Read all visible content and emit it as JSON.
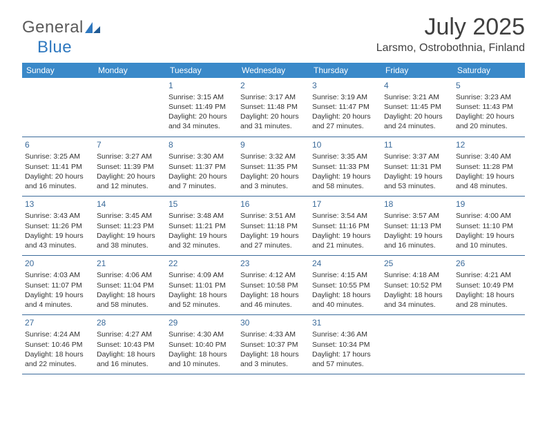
{
  "brand": {
    "part1": "General",
    "part2": "Blue"
  },
  "header": {
    "title": "July 2025",
    "location": "Larsmo, Ostrobothnia, Finland"
  },
  "colors": {
    "header_bg": "#3a89c9",
    "header_text": "#ffffff",
    "rule": "#3a6a9a",
    "daynum": "#3a6a9a",
    "body_text": "#333333",
    "brand_gray": "#5a5a5a",
    "brand_blue": "#2f78bf"
  },
  "weekdays": [
    "Sunday",
    "Monday",
    "Tuesday",
    "Wednesday",
    "Thursday",
    "Friday",
    "Saturday"
  ],
  "weeks": [
    [
      null,
      null,
      {
        "d": "1",
        "sr": "Sunrise: 3:15 AM",
        "ss": "Sunset: 11:49 PM",
        "dl1": "Daylight: 20 hours",
        "dl2": "and 34 minutes."
      },
      {
        "d": "2",
        "sr": "Sunrise: 3:17 AM",
        "ss": "Sunset: 11:48 PM",
        "dl1": "Daylight: 20 hours",
        "dl2": "and 31 minutes."
      },
      {
        "d": "3",
        "sr": "Sunrise: 3:19 AM",
        "ss": "Sunset: 11:47 PM",
        "dl1": "Daylight: 20 hours",
        "dl2": "and 27 minutes."
      },
      {
        "d": "4",
        "sr": "Sunrise: 3:21 AM",
        "ss": "Sunset: 11:45 PM",
        "dl1": "Daylight: 20 hours",
        "dl2": "and 24 minutes."
      },
      {
        "d": "5",
        "sr": "Sunrise: 3:23 AM",
        "ss": "Sunset: 11:43 PM",
        "dl1": "Daylight: 20 hours",
        "dl2": "and 20 minutes."
      }
    ],
    [
      {
        "d": "6",
        "sr": "Sunrise: 3:25 AM",
        "ss": "Sunset: 11:41 PM",
        "dl1": "Daylight: 20 hours",
        "dl2": "and 16 minutes."
      },
      {
        "d": "7",
        "sr": "Sunrise: 3:27 AM",
        "ss": "Sunset: 11:39 PM",
        "dl1": "Daylight: 20 hours",
        "dl2": "and 12 minutes."
      },
      {
        "d": "8",
        "sr": "Sunrise: 3:30 AM",
        "ss": "Sunset: 11:37 PM",
        "dl1": "Daylight: 20 hours",
        "dl2": "and 7 minutes."
      },
      {
        "d": "9",
        "sr": "Sunrise: 3:32 AM",
        "ss": "Sunset: 11:35 PM",
        "dl1": "Daylight: 20 hours",
        "dl2": "and 3 minutes."
      },
      {
        "d": "10",
        "sr": "Sunrise: 3:35 AM",
        "ss": "Sunset: 11:33 PM",
        "dl1": "Daylight: 19 hours",
        "dl2": "and 58 minutes."
      },
      {
        "d": "11",
        "sr": "Sunrise: 3:37 AM",
        "ss": "Sunset: 11:31 PM",
        "dl1": "Daylight: 19 hours",
        "dl2": "and 53 minutes."
      },
      {
        "d": "12",
        "sr": "Sunrise: 3:40 AM",
        "ss": "Sunset: 11:28 PM",
        "dl1": "Daylight: 19 hours",
        "dl2": "and 48 minutes."
      }
    ],
    [
      {
        "d": "13",
        "sr": "Sunrise: 3:43 AM",
        "ss": "Sunset: 11:26 PM",
        "dl1": "Daylight: 19 hours",
        "dl2": "and 43 minutes."
      },
      {
        "d": "14",
        "sr": "Sunrise: 3:45 AM",
        "ss": "Sunset: 11:23 PM",
        "dl1": "Daylight: 19 hours",
        "dl2": "and 38 minutes."
      },
      {
        "d": "15",
        "sr": "Sunrise: 3:48 AM",
        "ss": "Sunset: 11:21 PM",
        "dl1": "Daylight: 19 hours",
        "dl2": "and 32 minutes."
      },
      {
        "d": "16",
        "sr": "Sunrise: 3:51 AM",
        "ss": "Sunset: 11:18 PM",
        "dl1": "Daylight: 19 hours",
        "dl2": "and 27 minutes."
      },
      {
        "d": "17",
        "sr": "Sunrise: 3:54 AM",
        "ss": "Sunset: 11:16 PM",
        "dl1": "Daylight: 19 hours",
        "dl2": "and 21 minutes."
      },
      {
        "d": "18",
        "sr": "Sunrise: 3:57 AM",
        "ss": "Sunset: 11:13 PM",
        "dl1": "Daylight: 19 hours",
        "dl2": "and 16 minutes."
      },
      {
        "d": "19",
        "sr": "Sunrise: 4:00 AM",
        "ss": "Sunset: 11:10 PM",
        "dl1": "Daylight: 19 hours",
        "dl2": "and 10 minutes."
      }
    ],
    [
      {
        "d": "20",
        "sr": "Sunrise: 4:03 AM",
        "ss": "Sunset: 11:07 PM",
        "dl1": "Daylight: 19 hours",
        "dl2": "and 4 minutes."
      },
      {
        "d": "21",
        "sr": "Sunrise: 4:06 AM",
        "ss": "Sunset: 11:04 PM",
        "dl1": "Daylight: 18 hours",
        "dl2": "and 58 minutes."
      },
      {
        "d": "22",
        "sr": "Sunrise: 4:09 AM",
        "ss": "Sunset: 11:01 PM",
        "dl1": "Daylight: 18 hours",
        "dl2": "and 52 minutes."
      },
      {
        "d": "23",
        "sr": "Sunrise: 4:12 AM",
        "ss": "Sunset: 10:58 PM",
        "dl1": "Daylight: 18 hours",
        "dl2": "and 46 minutes."
      },
      {
        "d": "24",
        "sr": "Sunrise: 4:15 AM",
        "ss": "Sunset: 10:55 PM",
        "dl1": "Daylight: 18 hours",
        "dl2": "and 40 minutes."
      },
      {
        "d": "25",
        "sr": "Sunrise: 4:18 AM",
        "ss": "Sunset: 10:52 PM",
        "dl1": "Daylight: 18 hours",
        "dl2": "and 34 minutes."
      },
      {
        "d": "26",
        "sr": "Sunrise: 4:21 AM",
        "ss": "Sunset: 10:49 PM",
        "dl1": "Daylight: 18 hours",
        "dl2": "and 28 minutes."
      }
    ],
    [
      {
        "d": "27",
        "sr": "Sunrise: 4:24 AM",
        "ss": "Sunset: 10:46 PM",
        "dl1": "Daylight: 18 hours",
        "dl2": "and 22 minutes."
      },
      {
        "d": "28",
        "sr": "Sunrise: 4:27 AM",
        "ss": "Sunset: 10:43 PM",
        "dl1": "Daylight: 18 hours",
        "dl2": "and 16 minutes."
      },
      {
        "d": "29",
        "sr": "Sunrise: 4:30 AM",
        "ss": "Sunset: 10:40 PM",
        "dl1": "Daylight: 18 hours",
        "dl2": "and 10 minutes."
      },
      {
        "d": "30",
        "sr": "Sunrise: 4:33 AM",
        "ss": "Sunset: 10:37 PM",
        "dl1": "Daylight: 18 hours",
        "dl2": "and 3 minutes."
      },
      {
        "d": "31",
        "sr": "Sunrise: 4:36 AM",
        "ss": "Sunset: 10:34 PM",
        "dl1": "Daylight: 17 hours",
        "dl2": "and 57 minutes."
      },
      null,
      null
    ]
  ]
}
